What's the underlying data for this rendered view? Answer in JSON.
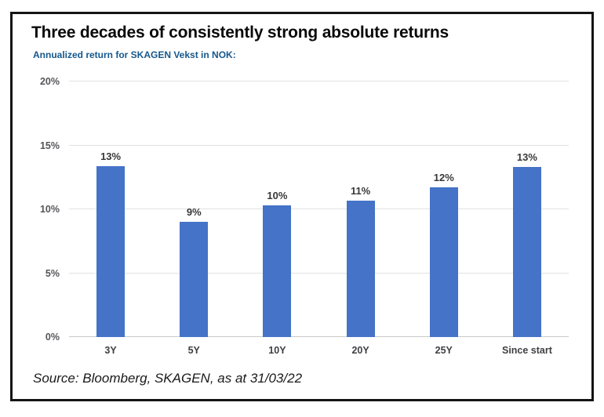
{
  "page": {
    "title": "Three decades of consistently strong absolute returns",
    "subtitle": "Annualized return for SKAGEN Vekst in NOK:",
    "source": "Source: Bloomberg, SKAGEN, as at 31/03/22"
  },
  "colors": {
    "bar": "#4473c8",
    "subtitle_text": "#16578c",
    "gridline": "#e2e2e2",
    "baseline": "#c9c9c9",
    "frame_border": "#141414"
  },
  "chart_data": {
    "type": "bar",
    "title": "Three decades of consistently strong absolute returns",
    "subtitle": "Annualized return for SKAGEN Vekst in NOK:",
    "categories": [
      "3Y",
      "5Y",
      "10Y",
      "20Y",
      "25Y",
      "Since start"
    ],
    "values": [
      13.4,
      9.0,
      10.3,
      10.7,
      11.7,
      13.3
    ],
    "bar_labels": [
      "13%",
      "9%",
      "10%",
      "11%",
      "12%",
      "13%"
    ],
    "ylabel": "",
    "xlabel": "",
    "ylim": [
      0,
      20
    ],
    "yticks": [
      {
        "value": 0,
        "label": "0%"
      },
      {
        "value": 5,
        "label": "5%"
      },
      {
        "value": 10,
        "label": "10%"
      },
      {
        "value": 15,
        "label": "15%"
      },
      {
        "value": 20,
        "label": "20%"
      }
    ],
    "grid": true,
    "legend": "none",
    "source": "Source: Bloomberg, SKAGEN, as at 31/03/22"
  }
}
